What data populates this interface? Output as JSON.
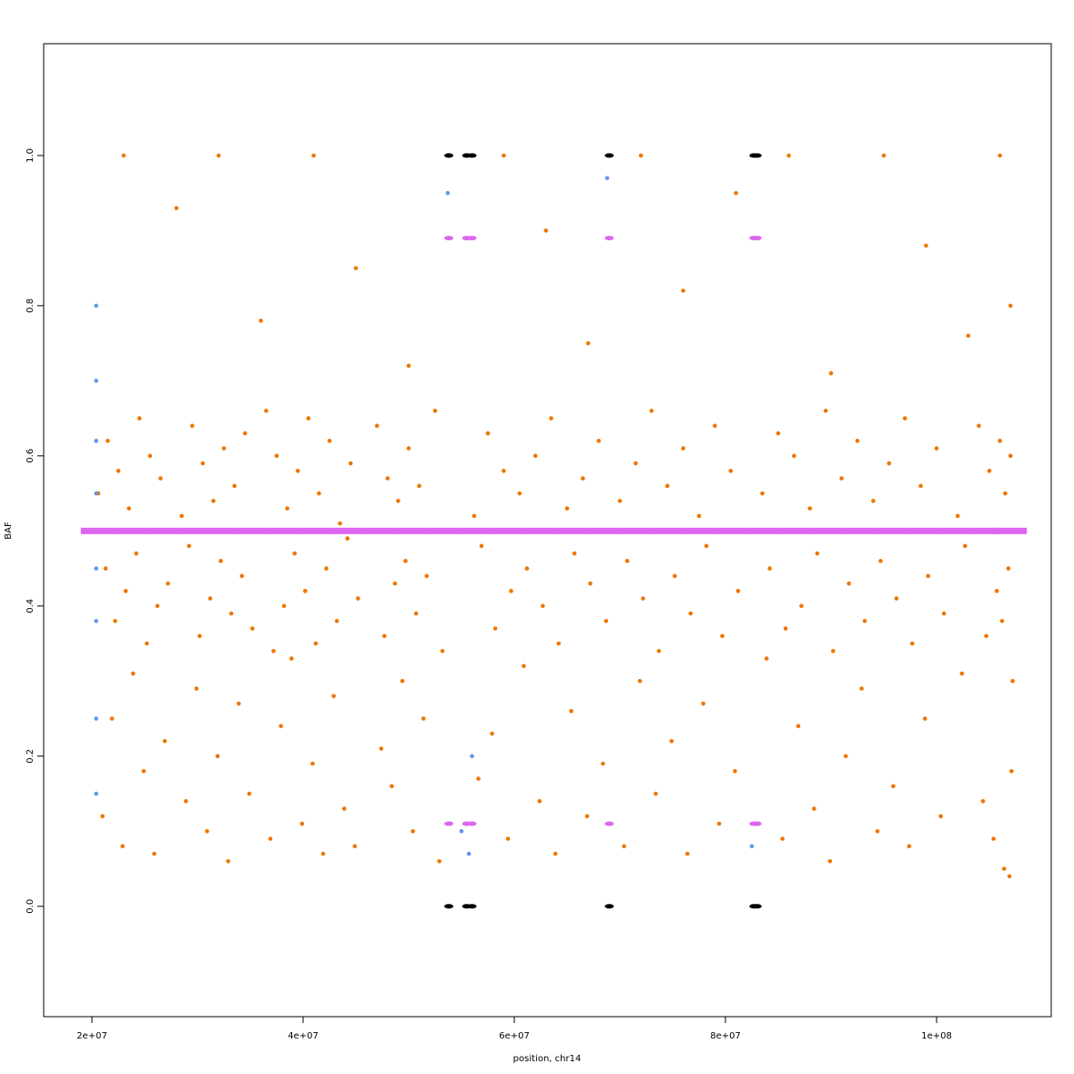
{
  "chart_data": {
    "type": "scatter",
    "xlabel": "position, chr14",
    "ylabel": "BAF",
    "xlim": [
      15430000,
      110860000
    ],
    "ylim": [
      -0.147,
      1.149
    ],
    "xticks": [
      {
        "value": 20000000,
        "label": "2e+07"
      },
      {
        "value": 40000000,
        "label": "4e+07"
      },
      {
        "value": 60000000,
        "label": "6e+07"
      },
      {
        "value": 80000000,
        "label": "8e+07"
      },
      {
        "value": 100000000,
        "label": "1e+08"
      }
    ],
    "yticks": [
      {
        "value": 0,
        "label": "0.0"
      },
      0.2,
      0.4,
      0.6,
      0.8,
      {
        "value": 1,
        "label": "1.0"
      }
    ],
    "grid": false,
    "series": [
      {
        "color": "#ee7600",
        "shape": "dot",
        "x": [
          20600000.0,
          21500000.0,
          22500000.0,
          23500000.0,
          24500000.0,
          25500000.0,
          26500000.0,
          28500000.0,
          29500000.0,
          30500000.0,
          31500000.0,
          32500000.0,
          33500000.0,
          34500000.0,
          36500000.0,
          37500000.0,
          38500000.0,
          39500000.0,
          40500000.0,
          41500000.0,
          42500000.0,
          43500000.0,
          44500000.0,
          47000000.0,
          48000000.0,
          49000000.0,
          50000000.0,
          51000000.0,
          52500000.0,
          56200000.0,
          57500000.0,
          59000000.0,
          60500000.0,
          62000000.0,
          63500000.0,
          65000000.0,
          66500000.0,
          68000000.0,
          70000000.0,
          71500000.0,
          73000000.0,
          74500000.0,
          76000000.0,
          77500000.0,
          79000000.0,
          80500000.0,
          83500000.0,
          85000000.0,
          86500000.0,
          88000000.0,
          89500000.0,
          91000000.0,
          92500000.0,
          94000000.0,
          95500000.0,
          97000000.0,
          98500000.0,
          100000000.0,
          102000000.0,
          104000000.0,
          105000000.0,
          106000000.0,
          106500000.0,
          107000000.0
        ],
        "values": [
          0.55,
          0.62,
          0.58,
          0.53,
          0.65,
          0.6,
          0.57,
          0.52,
          0.64,
          0.59,
          0.54,
          0.61,
          0.56,
          0.63,
          0.66,
          0.6,
          0.53,
          0.58,
          0.65,
          0.55,
          0.62,
          0.51,
          0.59,
          0.64,
          0.57,
          0.54,
          0.61,
          0.56,
          0.66,
          0.52,
          0.63,
          0.58,
          0.55,
          0.6,
          0.65,
          0.53,
          0.57,
          0.62,
          0.54,
          0.59,
          0.66,
          0.56,
          0.61,
          0.52,
          0.64,
          0.58,
          0.55,
          0.63,
          0.6,
          0.53,
          0.66,
          0.57,
          0.62,
          0.54,
          0.59,
          0.65,
          0.56,
          0.61,
          0.52,
          0.64,
          0.58,
          0.62,
          0.55,
          0.6
        ]
      },
      {
        "color": "#ee7600",
        "shape": "dot",
        "x": [
          21300000.0,
          22200000.0,
          23200000.0,
          24200000.0,
          25200000.0,
          26200000.0,
          27200000.0,
          29200000.0,
          30200000.0,
          31200000.0,
          32200000.0,
          33200000.0,
          34200000.0,
          35200000.0,
          37200000.0,
          38200000.0,
          39200000.0,
          40200000.0,
          41200000.0,
          42200000.0,
          43200000.0,
          44200000.0,
          45200000.0,
          47700000.0,
          48700000.0,
          49700000.0,
          50700000.0,
          51700000.0,
          53200000.0,
          56900000.0,
          58200000.0,
          59700000.0,
          61200000.0,
          62700000.0,
          64200000.0,
          65700000.0,
          67200000.0,
          68700000.0,
          70700000.0,
          72200000.0,
          73700000.0,
          75200000.0,
          76700000.0,
          78200000.0,
          79700000.0,
          81200000.0,
          84200000.0,
          85700000.0,
          87200000.0,
          88700000.0,
          90200000.0,
          91700000.0,
          93200000.0,
          94700000.0,
          96200000.0,
          97700000.0,
          99200000.0,
          100700000.0,
          102700000.0,
          104700000.0,
          105700000.0,
          106200000.0,
          106800000.0,
          107200000.0
        ],
        "values": [
          0.45,
          0.38,
          0.42,
          0.47,
          0.35,
          0.4,
          0.43,
          0.48,
          0.36,
          0.41,
          0.46,
          0.39,
          0.44,
          0.37,
          0.34,
          0.4,
          0.47,
          0.42,
          0.35,
          0.45,
          0.38,
          0.49,
          0.41,
          0.36,
          0.43,
          0.46,
          0.39,
          0.44,
          0.34,
          0.48,
          0.37,
          0.42,
          0.45,
          0.4,
          0.35,
          0.47,
          0.43,
          0.38,
          0.46,
          0.41,
          0.34,
          0.44,
          0.39,
          0.48,
          0.36,
          0.42,
          0.45,
          0.37,
          0.4,
          0.47,
          0.34,
          0.43,
          0.38,
          0.46,
          0.41,
          0.35,
          0.44,
          0.39,
          0.48,
          0.36,
          0.42,
          0.38,
          0.45,
          0.3
        ]
      },
      {
        "color": "#ee7600",
        "shape": "dot",
        "x": [
          21000000.0,
          21900000.0,
          22900000.0,
          23900000.0,
          24900000.0,
          25900000.0,
          26900000.0,
          28900000.0,
          29900000.0,
          30900000.0,
          31900000.0,
          32900000.0,
          33900000.0,
          34900000.0,
          36900000.0,
          37900000.0,
          38900000.0,
          39900000.0,
          40900000.0,
          41900000.0,
          42900000.0,
          43900000.0,
          44900000.0,
          47400000.0,
          48400000.0,
          49400000.0,
          50400000.0,
          51400000.0,
          52900000.0,
          56600000.0,
          57900000.0,
          59400000.0,
          60900000.0,
          62400000.0,
          63900000.0,
          65400000.0,
          66900000.0,
          68400000.0,
          70400000.0,
          71900000.0,
          73400000.0,
          74900000.0,
          76400000.0,
          77900000.0,
          79400000.0,
          80900000.0,
          83900000.0,
          85400000.0,
          86900000.0,
          88400000.0,
          89900000.0,
          91400000.0,
          92900000.0,
          94400000.0,
          95900000.0,
          97400000.0,
          98900000.0,
          100400000.0,
          102400000.0,
          104400000.0,
          105400000.0,
          106400000.0,
          106900000.0,
          107100000.0
        ],
        "values": [
          0.12,
          0.25,
          0.08,
          0.31,
          0.18,
          0.07,
          0.22,
          0.14,
          0.29,
          0.1,
          0.2,
          0.06,
          0.27,
          0.15,
          0.09,
          0.24,
          0.33,
          0.11,
          0.19,
          0.07,
          0.28,
          0.13,
          0.08,
          0.21,
          0.16,
          0.3,
          0.1,
          0.25,
          0.06,
          0.17,
          0.23,
          0.09,
          0.32,
          0.14,
          0.07,
          0.26,
          0.12,
          0.19,
          0.08,
          0.3,
          0.15,
          0.22,
          0.07,
          0.27,
          0.11,
          0.18,
          0.33,
          0.09,
          0.24,
          0.13,
          0.06,
          0.2,
          0.29,
          0.1,
          0.16,
          0.08,
          0.25,
          0.12,
          0.31,
          0.14,
          0.09,
          0.05,
          0.04,
          0.18
        ]
      },
      {
        "color": "#ee7600",
        "shape": "dot",
        "x": [
          23000000.0,
          28000000.0,
          32000000.0,
          36000000.0,
          41000000.0,
          45000000.0,
          50000000.0,
          59000000.0,
          63000000.0,
          67000000.0,
          72000000.0,
          76000000.0,
          81000000.0,
          86000000.0,
          90000000.0,
          95000000.0,
          99000000.0,
          103000000.0,
          106000000.0,
          107000000.0
        ],
        "values": [
          1.0,
          0.93,
          1.0,
          0.78,
          1.0,
          0.85,
          0.72,
          1.0,
          0.9,
          0.75,
          1.0,
          0.82,
          0.95,
          1.0,
          0.71,
          1.0,
          0.88,
          0.76,
          1.0,
          0.8
        ]
      },
      {
        "color": "#6495ed",
        "shape": "dot",
        "x": [
          20400000.0,
          20400000.0,
          20400000.0,
          20400000.0,
          20400000.0,
          20400000.0,
          20400000.0,
          20400000.0,
          53700000.0,
          55000000.0,
          55700000.0,
          56000000.0,
          68800000.0,
          82500000.0
        ],
        "values": [
          0.8,
          0.7,
          0.62,
          0.55,
          0.45,
          0.38,
          0.25,
          0.15,
          0.95,
          0.1,
          0.07,
          0.2,
          0.97,
          0.08
        ]
      },
      {
        "color": "#dd66ee",
        "shape": "band",
        "x": [
          20500000.0,
          23500000.0,
          26500000.0,
          29500000.0,
          32500000.0,
          35500000.0,
          38500000.0,
          41500000.0,
          44500000.0,
          47500000.0,
          50500000.0,
          53500000.0,
          56500000.0,
          59500000.0,
          62500000.0,
          65500000.0,
          68500000.0,
          71500000.0,
          74500000.0,
          77500000.0,
          80500000.0,
          83500000.0,
          86500000.0,
          89500000.0,
          92500000.0,
          95500000.0,
          98500000.0,
          101500000.0,
          104500000.0,
          107000000.0
        ],
        "values": [
          0.5,
          0.5,
          0.5,
          0.5,
          0.5,
          0.5,
          0.5,
          0.5,
          0.5,
          0.5,
          0.5,
          0.5,
          0.5,
          0.5,
          0.5,
          0.5,
          0.5,
          0.5,
          0.5,
          0.5,
          0.5,
          0.5,
          0.5,
          0.5,
          0.5,
          0.5,
          0.5,
          0.5,
          0.5,
          0.5
        ]
      },
      {
        "color": "#dd66ee",
        "shape": "blob",
        "x": [
          53800000.0,
          55500000.0,
          56000000.0,
          69000000.0,
          82700000.0,
          83000000.0,
          53800000.0,
          55500000.0,
          56000000.0,
          69000000.0,
          82700000.0,
          83000000.0
        ],
        "values": [
          0.89,
          0.89,
          0.89,
          0.89,
          0.89,
          0.89,
          0.11,
          0.11,
          0.11,
          0.11,
          0.11,
          0.11
        ]
      },
      {
        "color": "#000000",
        "shape": "blob",
        "x": [
          53800000.0,
          55500000.0,
          56000000.0,
          69000000.0,
          82700000.0,
          83000000.0,
          53800000.0,
          55500000.0,
          56000000.0,
          69000000.0,
          82700000.0,
          83000000.0
        ],
        "values": [
          1,
          1,
          1,
          1,
          1,
          1,
          0,
          0,
          0,
          0,
          0,
          0
        ]
      }
    ]
  }
}
